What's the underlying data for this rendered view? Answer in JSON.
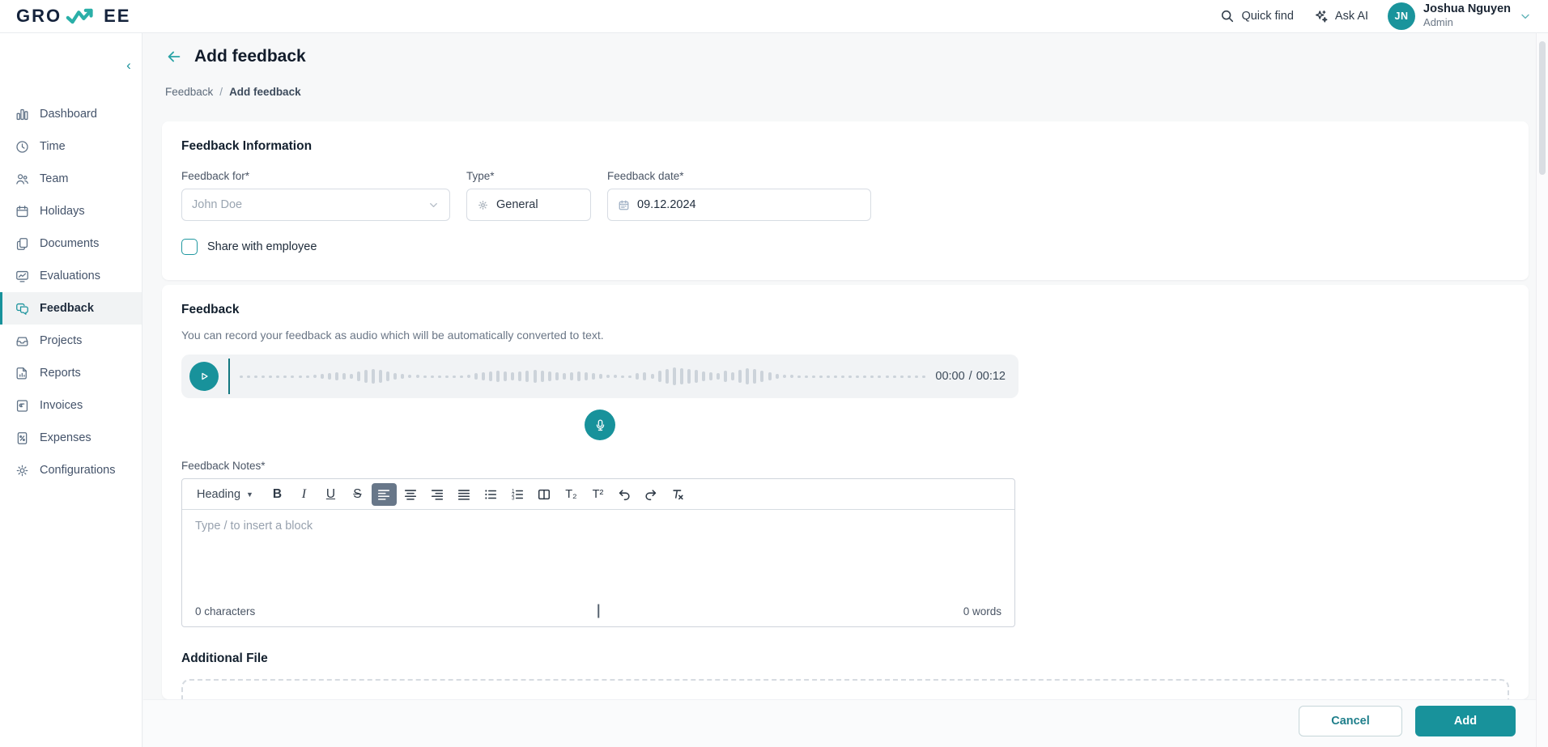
{
  "brand": {
    "name": "GROWEE",
    "logo_pre": "GRO",
    "logo_post": "EE"
  },
  "topbar": {
    "quick_find_label": "Quick find",
    "ask_ai_label": "Ask AI",
    "user": {
      "initials": "JN",
      "name": "Joshua Nguyen",
      "role": "Admin"
    }
  },
  "sidebar": {
    "items": [
      {
        "label": "Dashboard",
        "icon": "dashboard",
        "active": false
      },
      {
        "label": "Time",
        "icon": "time",
        "active": false
      },
      {
        "label": "Team",
        "icon": "team",
        "active": false
      },
      {
        "label": "Holidays",
        "icon": "holidays",
        "active": false
      },
      {
        "label": "Documents",
        "icon": "documents",
        "active": false
      },
      {
        "label": "Evaluations",
        "icon": "evaluations",
        "active": false
      },
      {
        "label": "Feedback",
        "icon": "feedback",
        "active": true
      },
      {
        "label": "Projects",
        "icon": "projects",
        "active": false
      },
      {
        "label": "Reports",
        "icon": "reports",
        "active": false
      },
      {
        "label": "Invoices",
        "icon": "invoices",
        "active": false
      },
      {
        "label": "Expenses",
        "icon": "expenses",
        "active": false
      },
      {
        "label": "Configurations",
        "icon": "configurations",
        "active": false
      }
    ]
  },
  "page": {
    "title": "Add feedback",
    "breadcrumb": {
      "parent": "Feedback",
      "separator": "/",
      "current": "Add feedback"
    }
  },
  "feedback_info": {
    "heading": "Feedback Information",
    "feedback_for": {
      "label": "Feedback for*",
      "value": "John Doe"
    },
    "type": {
      "label": "Type*",
      "value": "General"
    },
    "date": {
      "label": "Feedback date*",
      "value": "09.12.2024"
    },
    "share_checkbox": {
      "label": "Share with employee",
      "checked": false
    }
  },
  "feedback_section": {
    "heading": "Feedback",
    "description": "You can record your feedback as audio which will be automatically converted to text.",
    "audio": {
      "current_time": "00:00",
      "separator": "/",
      "total_time": "00:12",
      "waveform": [
        3,
        3,
        3,
        3,
        3,
        3,
        3,
        3,
        3,
        3,
        4,
        6,
        8,
        10,
        8,
        6,
        12,
        16,
        18,
        16,
        12,
        8,
        6,
        4,
        4,
        3,
        3,
        3,
        3,
        3,
        3,
        4,
        8,
        10,
        12,
        14,
        12,
        10,
        12,
        14,
        16,
        14,
        12,
        10,
        8,
        10,
        12,
        10,
        8,
        6,
        4,
        4,
        3,
        3,
        8,
        10,
        6,
        14,
        18,
        22,
        20,
        18,
        16,
        12,
        10,
        8,
        14,
        10,
        16,
        20,
        18,
        14,
        10,
        6,
        4,
        4,
        3,
        3,
        3,
        3,
        3,
        3,
        3,
        3,
        3,
        3,
        3,
        3,
        3,
        3,
        3,
        3,
        3,
        3
      ]
    }
  },
  "notes": {
    "label": "Feedback Notes*",
    "placeholder": "Type / to insert a block",
    "char_count": "0 characters",
    "word_count": "0 words",
    "toolbar": [
      {
        "name": "heading",
        "label": "Heading",
        "active": false
      },
      {
        "name": "bold",
        "active": false
      },
      {
        "name": "italic",
        "active": false
      },
      {
        "name": "underline",
        "active": false
      },
      {
        "name": "strikethrough",
        "active": false
      },
      {
        "name": "align-left",
        "active": true
      },
      {
        "name": "align-center",
        "active": false
      },
      {
        "name": "align-right",
        "active": false
      },
      {
        "name": "align-justify",
        "active": false
      },
      {
        "name": "bullet-list",
        "active": false
      },
      {
        "name": "ordered-list",
        "active": false
      },
      {
        "name": "columns",
        "active": false
      },
      {
        "name": "subscript",
        "active": false
      },
      {
        "name": "superscript",
        "active": false
      },
      {
        "name": "undo",
        "active": false
      },
      {
        "name": "redo",
        "active": false
      },
      {
        "name": "clear-formatting",
        "active": false
      }
    ]
  },
  "additional_file": {
    "heading": "Additional File"
  },
  "actions": {
    "cancel_label": "Cancel",
    "add_label": "Add"
  },
  "colors": {
    "teal": "#18929b",
    "teal_bright": "#2aafa8",
    "waveform_bar": "#ccd3da",
    "toolbar_active_bg": "#687789"
  }
}
